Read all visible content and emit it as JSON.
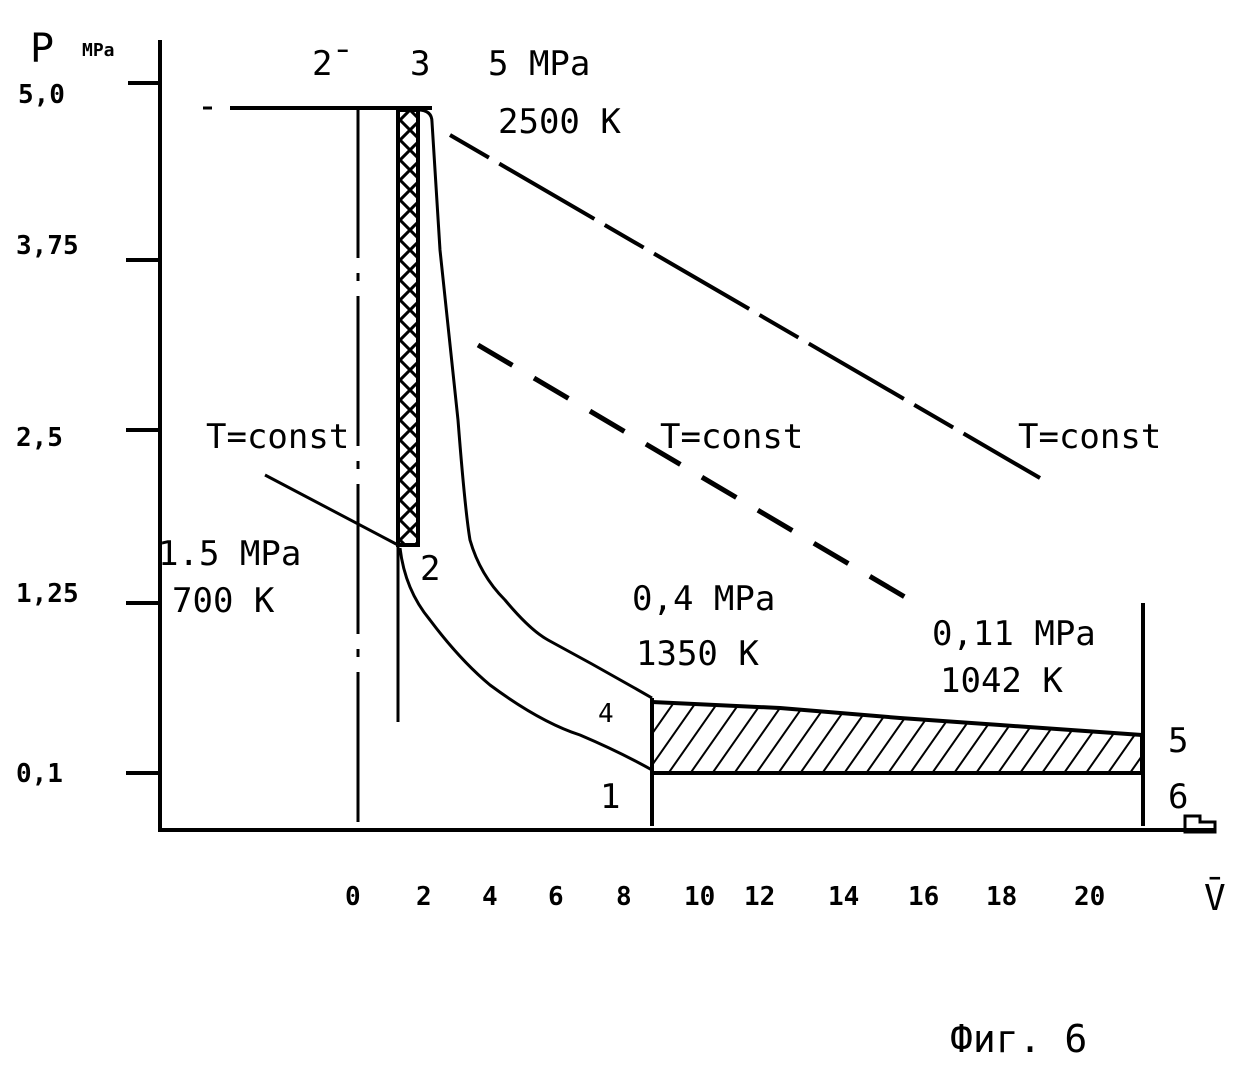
{
  "axes": {
    "y_label": "P",
    "y_unit": "MPa",
    "y_ticks": [
      "5,0",
      "3,75",
      "2,5",
      "1,25",
      "0,1"
    ],
    "x_label": "V̄",
    "x_ticks": [
      "0",
      "2",
      "4",
      "6",
      "8",
      "10",
      "12",
      "14",
      "16",
      "18",
      "20"
    ]
  },
  "points": {
    "p2bar": "2̄",
    "p3": "3",
    "p2": "2",
    "p4": "4",
    "p1": "1",
    "p5": "5",
    "p6": "6"
  },
  "annotations": {
    "state3_pressure": "5 MPa",
    "state3_temp": "2500 K",
    "state2_pressure": "1.5 MPa",
    "state2_temp": "700 K",
    "state4_pressure": "0,4 MPa",
    "state4_temp": "1350 K",
    "state5_pressure": "0,11 MPa",
    "state5_temp": "1042 K",
    "isotherm_1": "T=const",
    "isotherm_2": "T=const",
    "isotherm_3": "T=const"
  },
  "caption": "Фиг. 6"
}
